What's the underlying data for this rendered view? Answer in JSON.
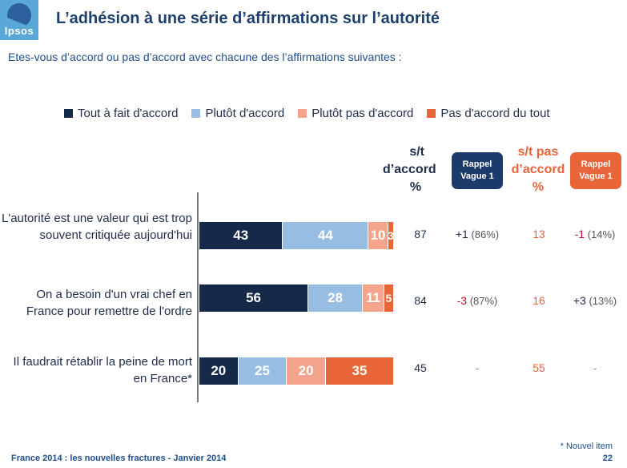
{
  "logo": {
    "text": "Ipsos",
    "color": "#5aa8d8"
  },
  "title": "L’adhésion à une série d’affirmations sur l’autorité",
  "subtitle": "Etes-vous d’accord ou pas d’accord avec chacune des l’affirmations suivantes :",
  "columns": {
    "st_accord": [
      "s/t",
      "d’accord",
      "%"
    ],
    "st_pas_accord": [
      "s/t pas",
      "d’accord",
      "%"
    ],
    "rappel_1": [
      "Rappel",
      "Vague 1"
    ],
    "rappel_2": [
      "Rappel",
      "Vague 1"
    ]
  },
  "chart_data": {
    "type": "bar",
    "orientation": "horizontal",
    "stacked": true,
    "categories": [
      "L'autorité est une valeur qui est trop souvent critiquée aujourd'hui",
      "On a besoin d'un vrai chef en France pour remettre de l'ordre",
      "Il faudrait rétablir la peine de mort en France*"
    ],
    "series": [
      {
        "name": "Tout à fait d'accord",
        "color": "#152a48",
        "values": [
          43,
          56,
          20
        ]
      },
      {
        "name": "Plutôt d'accord",
        "color": "#98bde3",
        "values": [
          44,
          28,
          25
        ]
      },
      {
        "name": "Plutôt pas d'accord",
        "color": "#f4a48a",
        "values": [
          10,
          11,
          20
        ]
      },
      {
        "name": "Pas d'accord du tout",
        "color": "#e8653a",
        "values": [
          3,
          5,
          35
        ]
      }
    ],
    "labels_shown": [
      [
        "43",
        "44",
        "10",
        "3"
      ],
      [
        "56",
        "28",
        "11",
        "5"
      ],
      [
        "20",
        "25",
        "20",
        "35"
      ]
    ],
    "legend_position": "top",
    "grid": false
  },
  "table": [
    {
      "st_accord": "87",
      "rappel1_delta": "+1",
      "rappel1_sign": "pos",
      "rappel1_prev": "(86%)",
      "st_pas": "13",
      "rappel2_delta": "-1",
      "rappel2_sign": "neg",
      "rappel2_prev": "(14%)"
    },
    {
      "st_accord": "84",
      "rappel1_delta": "-3",
      "rappel1_sign": "neg",
      "rappel1_prev": "(87%)",
      "st_pas": "16",
      "rappel2_delta": "+3",
      "rappel2_sign": "pos",
      "rappel2_prev": "(13%)"
    },
    {
      "st_accord": "45",
      "rappel1_delta": "-",
      "rappel1_sign": "none",
      "rappel1_prev": "",
      "st_pas": "55",
      "rappel2_delta": "-",
      "rappel2_sign": "none",
      "rappel2_prev": ""
    }
  ],
  "footnote": "* Nouvel item",
  "footer": "France 2014 : les nouvelles fractures - Janvier 2014",
  "page_number": "22"
}
